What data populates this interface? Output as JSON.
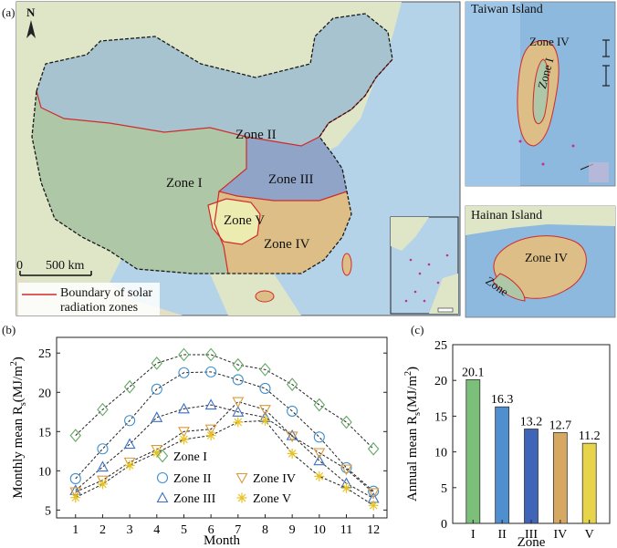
{
  "panel_a": {
    "label": "(a)",
    "north": "N",
    "scale_start": "0",
    "scale_end": "500 km",
    "legend": [
      "Boundary of solar",
      "radiation zones"
    ],
    "zone_labels": [
      "Zone I",
      "Zone II",
      "Zone III",
      "Zone IV",
      "Zone V"
    ],
    "taiwan": {
      "title": "Taiwan Island",
      "zone_iv": "Zone IV",
      "zone_i": "Zone I"
    },
    "hainan": {
      "title": "Hainan Island",
      "zone_iv": "Zone IV",
      "zone": "Zone"
    },
    "colors": {
      "sea": "#b5d3e8",
      "land": "#d9e3c3",
      "zone1": "#aec7a6",
      "zone2": "#a7c3cf",
      "zone3": "#8fa4c6",
      "zone4": "#dcbe86",
      "zone5": "#ecebb0",
      "boundary": "#d22a2a",
      "border": "#1a1a1a"
    }
  },
  "chart_b": {
    "label": "(b)",
    "type": "line",
    "ylabel_main": "Monthly mean R",
    "ylabel_sub": "s",
    "ylabel_unit": "(MJ/m",
    "ylabel_sup": "2",
    "ylabel_close": ")",
    "xlabel": "Month",
    "xlim": [
      0.3,
      12.5
    ],
    "ylim": [
      4,
      27
    ],
    "yticks": [
      "5",
      "10",
      "15",
      "20",
      "25"
    ],
    "xticks": [
      "1",
      "2",
      "3",
      "4",
      "5",
      "6",
      "7",
      "8",
      "9",
      "10",
      "11",
      "12"
    ],
    "legend": [
      "Zone I",
      "Zone II",
      "Zone IV",
      "Zone III",
      "Zone V"
    ],
    "series": [
      {
        "name": "Zone I",
        "marker": "diamond",
        "color": "#62a862",
        "values": [
          14.5,
          17.8,
          20.7,
          23.7,
          24.8,
          24.8,
          23.5,
          22.9,
          21.0,
          18.4,
          16.2,
          12.8
        ]
      },
      {
        "name": "Zone II",
        "marker": "circle",
        "color": "#3f8fd0",
        "values": [
          9.0,
          12.8,
          16.4,
          20.4,
          22.5,
          22.6,
          21.6,
          20.5,
          17.6,
          14.3,
          10.4,
          7.4
        ]
      },
      {
        "name": "Zone III",
        "marker": "triangle",
        "color": "#3b6fc4",
        "values": [
          7.5,
          10.5,
          13.4,
          16.8,
          17.9,
          18.4,
          17.5,
          16.8,
          14.5,
          11.3,
          8.4,
          6.5
        ]
      },
      {
        "name": "Zone IV",
        "marker": "triangle-down",
        "color": "#d99a3a",
        "values": [
          7.3,
          8.8,
          11.1,
          12.7,
          15.0,
          15.3,
          18.8,
          17.8,
          14.4,
          12.3,
          10.2,
          7.2
        ]
      },
      {
        "name": "Zone V",
        "marker": "star",
        "color": "#e8c21f",
        "values": [
          6.6,
          8.3,
          10.7,
          12.3,
          14.0,
          14.5,
          16.2,
          16.4,
          12.2,
          9.3,
          7.8,
          5.6
        ]
      }
    ]
  },
  "chart_c": {
    "label": "(c)",
    "type": "bar",
    "ylabel_main": "Annual mean R",
    "ylabel_sub": "s",
    "ylabel_unit": "(MJ/m",
    "ylabel_sup": "2",
    "ylabel_close": ")",
    "xlabel": "Zone",
    "ylim": [
      0,
      25
    ],
    "yticks": [
      "0",
      "5",
      "10",
      "15",
      "20",
      "25"
    ],
    "categories": [
      "I",
      "II",
      "III",
      "IV",
      "V"
    ],
    "values": [
      20.1,
      16.3,
      13.2,
      12.7,
      11.2
    ],
    "value_labels": [
      "20.1",
      "16.3",
      "13.2",
      "12.7",
      "11.2"
    ],
    "colors": [
      "#7cbf7a",
      "#4f8fcf",
      "#3f65b8",
      "#d6a861",
      "#e8d44a"
    ]
  }
}
